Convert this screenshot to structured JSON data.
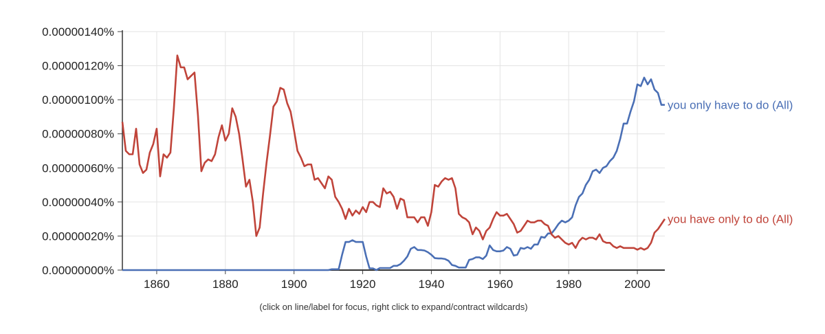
{
  "chart_data": {
    "type": "line",
    "x_range": [
      1850,
      2008
    ],
    "y_range": [
      0,
      1.4e-06
    ],
    "y_ticks": [
      {
        "value": 1.4e-06,
        "label": "0.00000140%"
      },
      {
        "value": 1.2e-06,
        "label": "0.00000120%"
      },
      {
        "value": 1e-06,
        "label": "0.00000100%"
      },
      {
        "value": 8e-07,
        "label": "0.00000080%"
      },
      {
        "value": 6e-07,
        "label": "0.00000060%"
      },
      {
        "value": 4e-07,
        "label": "0.00000040%"
      },
      {
        "value": 2e-07,
        "label": "0.00000020%"
      },
      {
        "value": 0,
        "label": "0.00000000%"
      }
    ],
    "x_ticks": [
      {
        "value": 1860,
        "label": "1860"
      },
      {
        "value": 1880,
        "label": "1880"
      },
      {
        "value": 1900,
        "label": "1900"
      },
      {
        "value": 1920,
        "label": "1920"
      },
      {
        "value": 1940,
        "label": "1940"
      },
      {
        "value": 1960,
        "label": "1960"
      },
      {
        "value": 1980,
        "label": "1980"
      },
      {
        "value": 2000,
        "label": "2000"
      }
    ],
    "grid": true,
    "series": [
      {
        "name": "you only have to do (All)",
        "color": "#4a6fb5",
        "points": [
          [
            1850,
            0
          ],
          [
            1910,
            0
          ],
          [
            1911,
            5e-09
          ],
          [
            1913,
            5e-09
          ],
          [
            1914,
            9e-08
          ],
          [
            1915,
            1.65e-07
          ],
          [
            1916,
            1.65e-07
          ],
          [
            1917,
            1.75e-07
          ],
          [
            1918,
            1.65e-07
          ],
          [
            1920,
            1.65e-07
          ],
          [
            1921,
            8e-08
          ],
          [
            1922,
            1e-08
          ],
          [
            1923,
            1e-08
          ],
          [
            1924,
            0
          ],
          [
            1925,
            1.2e-08
          ],
          [
            1928,
            1.2e-08
          ],
          [
            1929,
            2.5e-08
          ],
          [
            1930,
            2.5e-08
          ],
          [
            1931,
            3.5e-08
          ],
          [
            1932,
            5.5e-08
          ],
          [
            1933,
            8e-08
          ],
          [
            1934,
            1.25e-07
          ],
          [
            1935,
            1.35e-07
          ],
          [
            1936,
            1.18e-07
          ],
          [
            1937,
            1.18e-07
          ],
          [
            1938,
            1.15e-07
          ],
          [
            1939,
            1.05e-07
          ],
          [
            1940,
            9e-08
          ],
          [
            1941,
            7e-08
          ],
          [
            1942,
            6.8e-08
          ],
          [
            1943,
            6.8e-08
          ],
          [
            1944,
            6.5e-08
          ],
          [
            1945,
            5.5e-08
          ],
          [
            1946,
            3e-08
          ],
          [
            1947,
            2.5e-08
          ],
          [
            1948,
            1.5e-08
          ],
          [
            1949,
            1.5e-08
          ],
          [
            1950,
            1.5e-08
          ],
          [
            1951,
            6e-08
          ],
          [
            1952,
            6.5e-08
          ],
          [
            1953,
            7.5e-08
          ],
          [
            1954,
            7.5e-08
          ],
          [
            1955,
            6.5e-08
          ],
          [
            1956,
            8.5e-08
          ],
          [
            1957,
            1.45e-07
          ],
          [
            1958,
            1.18e-07
          ],
          [
            1959,
            1.1e-07
          ],
          [
            1960,
            1.1e-07
          ],
          [
            1961,
            1.15e-07
          ],
          [
            1962,
            1.35e-07
          ],
          [
            1963,
            1.25e-07
          ],
          [
            1964,
            8.5e-08
          ],
          [
            1965,
            9e-08
          ],
          [
            1966,
            1.3e-07
          ],
          [
            1967,
            1.25e-07
          ],
          [
            1968,
            1.35e-07
          ],
          [
            1969,
            1.25e-07
          ],
          [
            1970,
            1.5e-07
          ],
          [
            1971,
            1.5e-07
          ],
          [
            1972,
            1.95e-07
          ],
          [
            1973,
            1.9e-07
          ],
          [
            1974,
            2.15e-07
          ],
          [
            1975,
            2.15e-07
          ],
          [
            1976,
            2.4e-07
          ],
          [
            1977,
            2.7e-07
          ],
          [
            1978,
            2.9e-07
          ],
          [
            1979,
            2.8e-07
          ],
          [
            1980,
            2.9e-07
          ],
          [
            1981,
            3.1e-07
          ],
          [
            1982,
            3.8e-07
          ],
          [
            1983,
            4.3e-07
          ],
          [
            1984,
            4.5e-07
          ],
          [
            1985,
            5e-07
          ],
          [
            1986,
            5.3e-07
          ],
          [
            1987,
            5.8e-07
          ],
          [
            1988,
            5.9e-07
          ],
          [
            1989,
            5.7e-07
          ],
          [
            1990,
            6e-07
          ],
          [
            1991,
            6.1e-07
          ],
          [
            1992,
            6.4e-07
          ],
          [
            1993,
            6.6e-07
          ],
          [
            1994,
            7e-07
          ],
          [
            1995,
            7.7e-07
          ],
          [
            1996,
            8.6e-07
          ],
          [
            1997,
            8.6e-07
          ],
          [
            1998,
            9.3e-07
          ],
          [
            1999,
            9.9e-07
          ],
          [
            2000,
            1.09e-06
          ],
          [
            2001,
            1.08e-06
          ],
          [
            2002,
            1.13e-06
          ],
          [
            2003,
            1.09e-06
          ],
          [
            2004,
            1.12e-06
          ],
          [
            2005,
            1.06e-06
          ],
          [
            2006,
            1.04e-06
          ],
          [
            2007,
            9.7e-07
          ],
          [
            2008,
            9.7e-07
          ]
        ]
      },
      {
        "name": "you have only to do (All)",
        "color": "#c0443a",
        "points": [
          [
            1850,
            8.7e-07
          ],
          [
            1851,
            7e-07
          ],
          [
            1852,
            6.8e-07
          ],
          [
            1853,
            6.8e-07
          ],
          [
            1854,
            8.3e-07
          ],
          [
            1855,
            6.2e-07
          ],
          [
            1856,
            5.7e-07
          ],
          [
            1857,
            5.9e-07
          ],
          [
            1858,
            6.9e-07
          ],
          [
            1859,
            7.4e-07
          ],
          [
            1860,
            8.3e-07
          ],
          [
            1861,
            5.5e-07
          ],
          [
            1862,
            6.8e-07
          ],
          [
            1863,
            6.6e-07
          ],
          [
            1864,
            6.9e-07
          ],
          [
            1865,
            9.5e-07
          ],
          [
            1866,
            1.26e-06
          ],
          [
            1867,
            1.19e-06
          ],
          [
            1868,
            1.19e-06
          ],
          [
            1869,
            1.12e-06
          ],
          [
            1870,
            1.14e-06
          ],
          [
            1871,
            1.16e-06
          ],
          [
            1872,
            9.1e-07
          ],
          [
            1873,
            5.8e-07
          ],
          [
            1874,
            6.3e-07
          ],
          [
            1875,
            6.5e-07
          ],
          [
            1876,
            6.4e-07
          ],
          [
            1877,
            6.8e-07
          ],
          [
            1878,
            7.8e-07
          ],
          [
            1879,
            8.5e-07
          ],
          [
            1880,
            7.6e-07
          ],
          [
            1881,
            8e-07
          ],
          [
            1882,
            9.5e-07
          ],
          [
            1883,
            9e-07
          ],
          [
            1884,
            8e-07
          ],
          [
            1885,
            6.5e-07
          ],
          [
            1886,
            4.9e-07
          ],
          [
            1887,
            5.3e-07
          ],
          [
            1888,
            4e-07
          ],
          [
            1889,
            2e-07
          ],
          [
            1890,
            2.5e-07
          ],
          [
            1891,
            4.5e-07
          ],
          [
            1892,
            6.3e-07
          ],
          [
            1893,
            7.9e-07
          ],
          [
            1894,
            9.6e-07
          ],
          [
            1895,
            9.9e-07
          ],
          [
            1896,
            1.07e-06
          ],
          [
            1897,
            1.06e-06
          ],
          [
            1898,
            9.8e-07
          ],
          [
            1899,
            9.3e-07
          ],
          [
            1900,
            8.2e-07
          ],
          [
            1901,
            7e-07
          ],
          [
            1902,
            6.6e-07
          ],
          [
            1903,
            6.1e-07
          ],
          [
            1904,
            6.2e-07
          ],
          [
            1905,
            6.2e-07
          ],
          [
            1906,
            5.3e-07
          ],
          [
            1907,
            5.4e-07
          ],
          [
            1908,
            5.1e-07
          ],
          [
            1909,
            4.8e-07
          ],
          [
            1910,
            5.5e-07
          ],
          [
            1911,
            5.3e-07
          ],
          [
            1912,
            4.3e-07
          ],
          [
            1913,
            4e-07
          ],
          [
            1914,
            3.6e-07
          ],
          [
            1915,
            3e-07
          ],
          [
            1916,
            3.6e-07
          ],
          [
            1917,
            3.2e-07
          ],
          [
            1918,
            3.5e-07
          ],
          [
            1919,
            3.3e-07
          ],
          [
            1920,
            3.7e-07
          ],
          [
            1921,
            3.4e-07
          ],
          [
            1922,
            4e-07
          ],
          [
            1923,
            4e-07
          ],
          [
            1924,
            3.8e-07
          ],
          [
            1925,
            3.7e-07
          ],
          [
            1926,
            4.8e-07
          ],
          [
            1927,
            4.5e-07
          ],
          [
            1928,
            4.6e-07
          ],
          [
            1929,
            4.3e-07
          ],
          [
            1930,
            3.6e-07
          ],
          [
            1931,
            4.2e-07
          ],
          [
            1932,
            4.1e-07
          ],
          [
            1933,
            3.1e-07
          ],
          [
            1934,
            3.1e-07
          ],
          [
            1935,
            3.1e-07
          ],
          [
            1936,
            2.8e-07
          ],
          [
            1937,
            3.1e-07
          ],
          [
            1938,
            3.1e-07
          ],
          [
            1939,
            2.6e-07
          ],
          [
            1940,
            3.4e-07
          ],
          [
            1941,
            5e-07
          ],
          [
            1942,
            4.9e-07
          ],
          [
            1943,
            5.2e-07
          ],
          [
            1944,
            5.4e-07
          ],
          [
            1945,
            5.3e-07
          ],
          [
            1946,
            5.4e-07
          ],
          [
            1947,
            4.8e-07
          ],
          [
            1948,
            3.3e-07
          ],
          [
            1949,
            3.1e-07
          ],
          [
            1950,
            3e-07
          ],
          [
            1951,
            2.8e-07
          ],
          [
            1952,
            2.1e-07
          ],
          [
            1953,
            2.5e-07
          ],
          [
            1954,
            2.3e-07
          ],
          [
            1955,
            1.8e-07
          ],
          [
            1956,
            2.3e-07
          ],
          [
            1957,
            2.5e-07
          ],
          [
            1958,
            3e-07
          ],
          [
            1959,
            3.4e-07
          ],
          [
            1960,
            3.2e-07
          ],
          [
            1961,
            3.2e-07
          ],
          [
            1962,
            3.3e-07
          ],
          [
            1963,
            3e-07
          ],
          [
            1964,
            2.7e-07
          ],
          [
            1965,
            2.2e-07
          ],
          [
            1966,
            2.3e-07
          ],
          [
            1967,
            2.6e-07
          ],
          [
            1968,
            2.9e-07
          ],
          [
            1969,
            2.8e-07
          ],
          [
            1970,
            2.8e-07
          ],
          [
            1971,
            2.9e-07
          ],
          [
            1972,
            2.9e-07
          ],
          [
            1973,
            2.7e-07
          ],
          [
            1974,
            2.6e-07
          ],
          [
            1975,
            2.1e-07
          ],
          [
            1976,
            1.9e-07
          ],
          [
            1977,
            2e-07
          ],
          [
            1978,
            1.8e-07
          ],
          [
            1979,
            1.6e-07
          ],
          [
            1980,
            1.5e-07
          ],
          [
            1981,
            1.6e-07
          ],
          [
            1982,
            1.3e-07
          ],
          [
            1983,
            1.7e-07
          ],
          [
            1984,
            1.9e-07
          ],
          [
            1985,
            1.8e-07
          ],
          [
            1986,
            1.9e-07
          ],
          [
            1987,
            1.9e-07
          ],
          [
            1988,
            1.8e-07
          ],
          [
            1989,
            2.1e-07
          ],
          [
            1990,
            1.7e-07
          ],
          [
            1991,
            1.6e-07
          ],
          [
            1992,
            1.6e-07
          ],
          [
            1993,
            1.4e-07
          ],
          [
            1994,
            1.3e-07
          ],
          [
            1995,
            1.4e-07
          ],
          [
            1996,
            1.3e-07
          ],
          [
            1997,
            1.3e-07
          ],
          [
            1998,
            1.3e-07
          ],
          [
            1999,
            1.3e-07
          ],
          [
            2000,
            1.2e-07
          ],
          [
            2001,
            1.3e-07
          ],
          [
            2002,
            1.2e-07
          ],
          [
            2003,
            1.3e-07
          ],
          [
            2004,
            1.6e-07
          ],
          [
            2005,
            2.2e-07
          ],
          [
            2006,
            2.4e-07
          ],
          [
            2007,
            2.7e-07
          ],
          [
            2008,
            3e-07
          ]
        ]
      }
    ]
  },
  "footer_note": "(click on line/label for focus, right click to expand/contract wildcards)"
}
